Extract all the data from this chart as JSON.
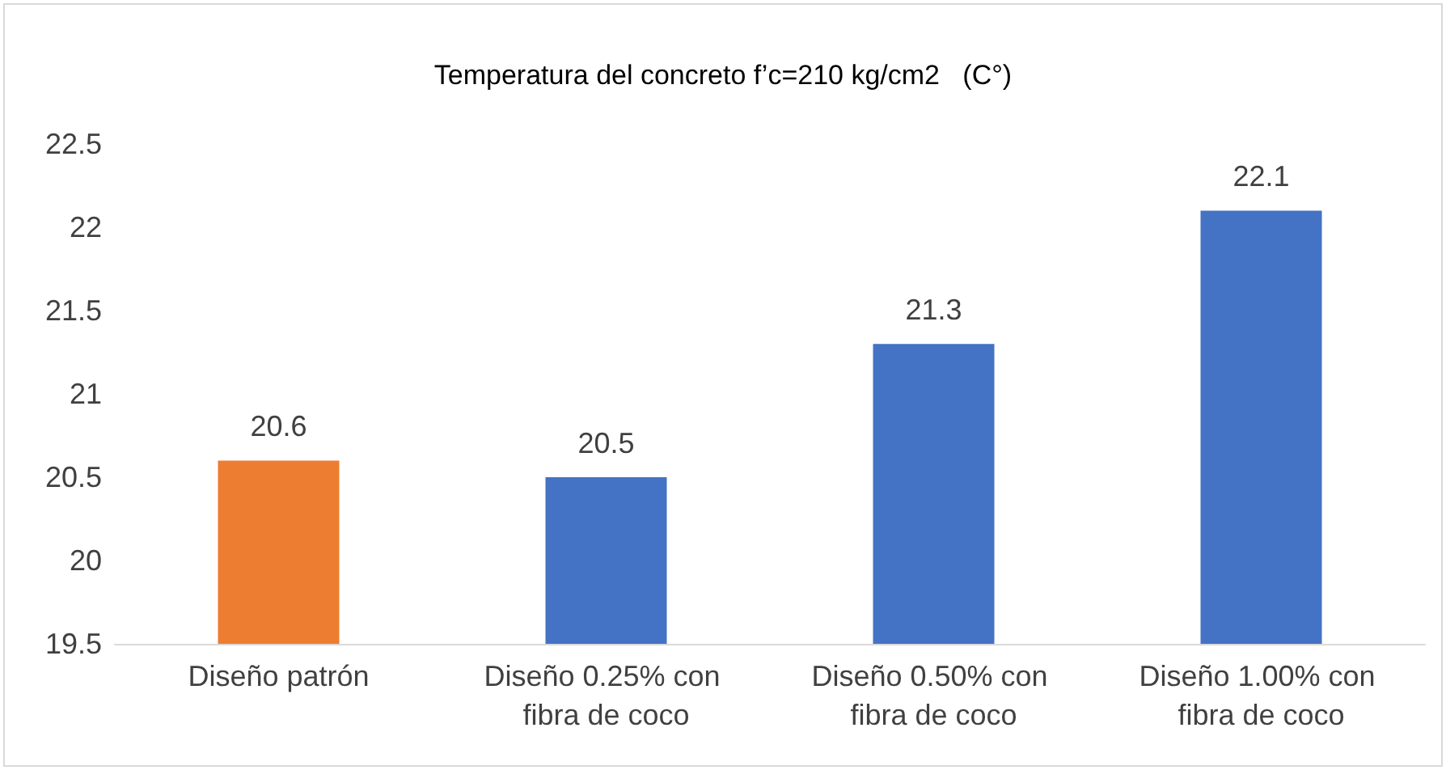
{
  "chart_data": {
    "type": "bar",
    "title": "Temperatura del concreto f’c=210 kg/cm2   (C°)",
    "categories": [
      "Diseño patrón",
      "Diseño 0.25% con fibra de coco",
      "Diseño 0.50% con fibra de coco",
      "Diseño 1.00% con fibra de coco"
    ],
    "values": [
      20.6,
      20.5,
      21.3,
      22.1
    ],
    "colors": [
      "#ed7d31",
      "#4472c4",
      "#4472c4",
      "#4472c4"
    ],
    "ylim": [
      19.5,
      22.5
    ],
    "yticks": [
      19.5,
      20,
      20.5,
      21,
      21.5,
      22,
      22.5
    ],
    "data_labels": true
  }
}
